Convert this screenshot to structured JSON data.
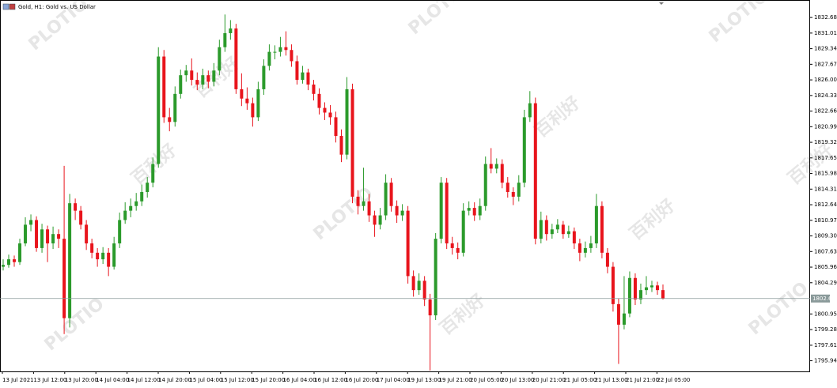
{
  "chart_data": {
    "type": "candlestick",
    "title": "Gold, H1: Gold vs. US Dollar",
    "watermark": {
      "brand": "PLOTIO",
      "chinese": "百利好"
    },
    "up_color": "#2b9a2b",
    "down_color": "#e8141c",
    "x_labels": [
      "13 Jul 2021",
      "13 Jul 12:00",
      "13 Jul 20:00",
      "14 Jul 04:00",
      "14 Jul 12:00",
      "14 Jul 20:00",
      "15 Jul 04:00",
      "15 Jul 12:00",
      "15 Jul 20:00",
      "16 Jul 04:00",
      "16 Jul 12:00",
      "16 Jul 20:00",
      "17 Jul 04:00",
      "19 Jul 13:00",
      "19 Jul 21:00",
      "20 Jul 05:00",
      "20 Jul 13:00",
      "20 Jul 21:00",
      "21 Jul 05:00",
      "21 Jul 13:00",
      "21 Jul 21:00",
      "22 Jul 05:00"
    ],
    "ylim": [
      1794.8,
      1834.55
    ],
    "yticks": [
      1832.68,
      1831.01,
      1829.34,
      1827.67,
      {
        "value": 1826.0,
        "label": "1826.00"
      },
      1824.33,
      1822.66,
      1820.99,
      1819.32,
      1817.65,
      1815.98,
      1814.31,
      1812.64,
      1810.97,
      {
        "value": 1809.3,
        "label": "1809.30"
      },
      1807.63,
      1805.96,
      1804.29,
      1800.95,
      1799.28,
      {
        "value": 1797.6,
        "label": "1797.61"
      },
      1795.94
    ],
    "current_price": {
      "value": 1802.6,
      "label": "1802.60"
    },
    "ohlc": [
      [
        1806.0,
        1806.8,
        1805.6,
        1806.2
      ],
      [
        1806.2,
        1807.3,
        1805.9,
        1806.8
      ],
      [
        1806.8,
        1807.2,
        1806.0,
        1806.5
      ],
      [
        1806.5,
        1809.0,
        1806.2,
        1808.5
      ],
      [
        1808.5,
        1811.3,
        1808.2,
        1810.5
      ],
      [
        1810.5,
        1811.6,
        1809.8,
        1811.0
      ],
      [
        1811.0,
        1811.4,
        1807.6,
        1808.0
      ],
      [
        1808.0,
        1810.6,
        1807.5,
        1810.0
      ],
      [
        1810.0,
        1810.4,
        1806.5,
        1808.5
      ],
      [
        1808.5,
        1810.3,
        1807.9,
        1809.5
      ],
      [
        1809.5,
        1810.0,
        1808.0,
        1809.0
      ],
      [
        1809.0,
        1816.8,
        1798.8,
        1800.5
      ],
      [
        1800.5,
        1813.8,
        1799.5,
        1812.8
      ],
      [
        1812.8,
        1813.3,
        1811.0,
        1812.0
      ],
      [
        1812.0,
        1812.5,
        1810.0,
        1810.5
      ],
      [
        1810.5,
        1811.0,
        1807.8,
        1808.5
      ],
      [
        1808.5,
        1809.0,
        1806.9,
        1807.5
      ],
      [
        1807.5,
        1808.0,
        1806.0,
        1806.8
      ],
      [
        1806.8,
        1808.1,
        1806.3,
        1807.5
      ],
      [
        1807.5,
        1808.0,
        1805.0,
        1806.0
      ],
      [
        1806.0,
        1809.2,
        1805.7,
        1808.5
      ],
      [
        1808.5,
        1811.8,
        1808.0,
        1811.0
      ],
      [
        1811.0,
        1812.9,
        1810.6,
        1812.0
      ],
      [
        1812.0,
        1813.3,
        1811.3,
        1812.5
      ],
      [
        1812.5,
        1813.9,
        1812.0,
        1813.0
      ],
      [
        1813.0,
        1814.8,
        1812.5,
        1814.0
      ],
      [
        1814.0,
        1815.6,
        1813.4,
        1815.0
      ],
      [
        1815.0,
        1817.7,
        1814.5,
        1817.0
      ],
      [
        1817.0,
        1829.5,
        1816.6,
        1828.5
      ],
      [
        1828.5,
        1829.2,
        1821.4,
        1822.0
      ],
      [
        1822.0,
        1823.0,
        1820.5,
        1821.5
      ],
      [
        1821.5,
        1825.3,
        1821.0,
        1824.5
      ],
      [
        1824.5,
        1827.1,
        1824.0,
        1826.5
      ],
      [
        1826.5,
        1827.6,
        1825.8,
        1827.0
      ],
      [
        1827.0,
        1828.3,
        1825.4,
        1826.0
      ],
      [
        1826.0,
        1826.8,
        1824.9,
        1825.5
      ],
      [
        1825.5,
        1827.2,
        1825.0,
        1826.5
      ],
      [
        1826.5,
        1827.0,
        1825.1,
        1825.8
      ],
      [
        1825.8,
        1827.8,
        1825.3,
        1827.0
      ],
      [
        1827.0,
        1830.3,
        1826.5,
        1829.5
      ],
      [
        1829.5,
        1833.0,
        1829.0,
        1831.0
      ],
      [
        1831.0,
        1832.4,
        1830.3,
        1831.5
      ],
      [
        1831.5,
        1832.0,
        1824.5,
        1825.0
      ],
      [
        1825.0,
        1826.7,
        1823.2,
        1824.0
      ],
      [
        1824.0,
        1825.2,
        1822.8,
        1823.5
      ],
      [
        1823.5,
        1824.1,
        1821.0,
        1822.0
      ],
      [
        1822.0,
        1825.8,
        1821.6,
        1825.0
      ],
      [
        1825.0,
        1828.2,
        1824.4,
        1827.5
      ],
      [
        1827.5,
        1829.8,
        1827.0,
        1829.0
      ],
      [
        1829.0,
        1829.7,
        1828.2,
        1829.0
      ],
      [
        1829.0,
        1830.6,
        1828.5,
        1829.5
      ],
      [
        1829.5,
        1831.2,
        1828.6,
        1829.2
      ],
      [
        1829.2,
        1829.8,
        1827.4,
        1828.0
      ],
      [
        1828.0,
        1828.6,
        1825.5,
        1826.0
      ],
      [
        1826.0,
        1827.5,
        1825.6,
        1826.8
      ],
      [
        1826.8,
        1827.2,
        1824.9,
        1825.5
      ],
      [
        1825.5,
        1826.0,
        1823.8,
        1824.5
      ],
      [
        1824.5,
        1825.1,
        1822.3,
        1823.0
      ],
      [
        1823.0,
        1823.6,
        1821.7,
        1822.5
      ],
      [
        1822.5,
        1823.3,
        1821.2,
        1822.0
      ],
      [
        1822.0,
        1822.6,
        1819.3,
        1820.0
      ],
      [
        1820.0,
        1820.7,
        1817.2,
        1818.0
      ],
      [
        1818.0,
        1826.3,
        1817.5,
        1825.0
      ],
      [
        1825.0,
        1825.6,
        1812.8,
        1813.5
      ],
      [
        1813.5,
        1814.2,
        1811.6,
        1812.5
      ],
      [
        1812.5,
        1816.6,
        1812.0,
        1813.0
      ],
      [
        1813.0,
        1813.8,
        1810.8,
        1811.5
      ],
      [
        1811.5,
        1812.0,
        1809.2,
        1810.5
      ],
      [
        1810.5,
        1812.3,
        1810.0,
        1811.5
      ],
      [
        1811.5,
        1815.9,
        1811.0,
        1815.0
      ],
      [
        1815.0,
        1815.5,
        1811.9,
        1812.5
      ],
      [
        1812.5,
        1813.1,
        1810.7,
        1811.5
      ],
      [
        1811.5,
        1812.7,
        1810.9,
        1812.0
      ],
      [
        1812.0,
        1812.5,
        1804.2,
        1805.0
      ],
      [
        1805.0,
        1805.6,
        1802.8,
        1803.5
      ],
      [
        1803.5,
        1805.3,
        1803.0,
        1804.5
      ],
      [
        1804.5,
        1805.0,
        1801.8,
        1802.5
      ],
      [
        1802.5,
        1803.1,
        1794.9,
        1800.8
      ],
      [
        1800.8,
        1809.6,
        1800.3,
        1809.0
      ],
      [
        1809.0,
        1815.6,
        1808.5,
        1815.0
      ],
      [
        1815.0,
        1815.5,
        1807.9,
        1808.5
      ],
      [
        1808.5,
        1809.2,
        1807.3,
        1808.0
      ],
      [
        1808.0,
        1808.6,
        1806.8,
        1807.5
      ],
      [
        1807.5,
        1812.8,
        1807.1,
        1812.0
      ],
      [
        1812.0,
        1813.0,
        1811.5,
        1812.3
      ],
      [
        1812.3,
        1812.9,
        1810.9,
        1811.5
      ],
      [
        1811.5,
        1813.3,
        1811.0,
        1812.5
      ],
      [
        1812.5,
        1817.8,
        1812.0,
        1817.0
      ],
      [
        1817.0,
        1818.7,
        1816.0,
        1816.5
      ],
      [
        1816.5,
        1817.6,
        1816.0,
        1817.0
      ],
      [
        1817.0,
        1817.5,
        1814.4,
        1815.0
      ],
      [
        1815.0,
        1815.6,
        1813.4,
        1814.0
      ],
      [
        1814.0,
        1814.5,
        1812.6,
        1813.5
      ],
      [
        1813.5,
        1815.8,
        1813.0,
        1815.0
      ],
      [
        1815.0,
        1822.8,
        1814.5,
        1822.0
      ],
      [
        1822.0,
        1824.8,
        1821.5,
        1823.5
      ],
      [
        1823.5,
        1824.1,
        1808.4,
        1809.0
      ],
      [
        1809.0,
        1811.9,
        1808.5,
        1811.0
      ],
      [
        1811.0,
        1811.5,
        1808.8,
        1809.5
      ],
      [
        1809.5,
        1810.6,
        1809.0,
        1810.0
      ],
      [
        1810.0,
        1811.1,
        1809.6,
        1810.5
      ],
      [
        1810.5,
        1810.9,
        1809.0,
        1809.5
      ],
      [
        1809.5,
        1810.4,
        1809.1,
        1809.8
      ],
      [
        1809.8,
        1810.2,
        1807.9,
        1808.5
      ],
      [
        1808.5,
        1809.0,
        1806.6,
        1807.5
      ],
      [
        1807.5,
        1808.7,
        1807.0,
        1808.0
      ],
      [
        1808.0,
        1809.3,
        1807.5,
        1808.5
      ],
      [
        1808.5,
        1813.8,
        1808.0,
        1812.5
      ],
      [
        1812.5,
        1813.0,
        1806.9,
        1807.5
      ],
      [
        1807.5,
        1808.0,
        1805.3,
        1806.0
      ],
      [
        1806.0,
        1806.5,
        1801.2,
        1802.0
      ],
      [
        1802.0,
        1802.6,
        1795.6,
        1799.8
      ],
      [
        1799.8,
        1805.0,
        1799.3,
        1801.0
      ],
      [
        1801.0,
        1805.5,
        1800.6,
        1804.8
      ],
      [
        1804.8,
        1805.3,
        1801.9,
        1802.5
      ],
      [
        1802.5,
        1804.2,
        1802.0,
        1803.5
      ],
      [
        1803.5,
        1805.0,
        1803.0,
        1803.8
      ],
      [
        1803.8,
        1804.5,
        1803.3,
        1804.0
      ],
      [
        1804.0,
        1804.4,
        1803.0,
        1803.5
      ],
      [
        1803.5,
        1804.1,
        1802.5,
        1802.6
      ]
    ]
  }
}
